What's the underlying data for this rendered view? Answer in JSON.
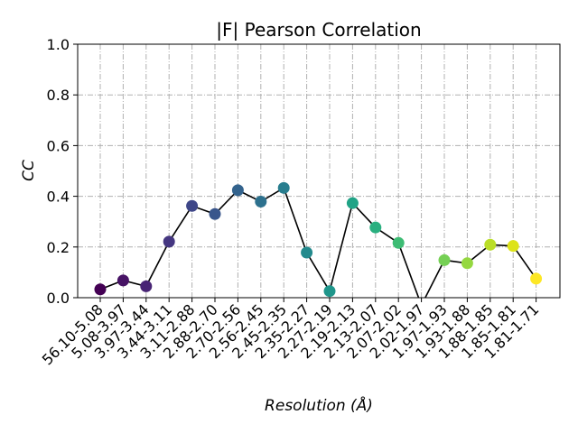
{
  "chart_data": {
    "type": "scatter",
    "title": "|F| Pearson Correlation",
    "xlabel": "Resolution (Å)",
    "ylabel": "CC",
    "ylim": [
      0,
      1.0
    ],
    "yticks": [
      "0.0",
      "0.2",
      "0.4",
      "0.6",
      "0.8",
      "1.0"
    ],
    "grid": true,
    "grid_style": "dash-dot",
    "colormap": "viridis",
    "line_color": "#000000",
    "categories": [
      "56.10-5.08",
      "5.08-3.97",
      "3.97-3.44",
      "3.44-3.11",
      "3.11-2.88",
      "2.88-2.70",
      "2.70-2.56",
      "2.56-2.45",
      "2.45-2.35",
      "2.35-2.27",
      "2.27-2.19",
      "2.19-2.13",
      "2.13-2.07",
      "2.07-2.02",
      "2.02-1.97",
      "1.97-1.93",
      "1.93-1.88",
      "1.88-1.85",
      "1.85-1.81",
      "1.81-1.71"
    ],
    "series": [
      {
        "values": [
          0.033,
          0.068,
          0.045,
          0.221,
          0.362,
          0.33,
          0.424,
          0.379,
          0.433,
          0.178,
          0.026,
          0.373,
          0.277,
          0.216,
          -0.03,
          0.148,
          0.136,
          0.209,
          0.204,
          0.075
        ]
      }
    ],
    "point_colors": [
      "#440154",
      "#471365",
      "#482475",
      "#453781",
      "#3f4788",
      "#39568c",
      "#33638d",
      "#2d718e",
      "#287d8e",
      "#238a8d",
      "#1f968b",
      "#20a386",
      "#29af7f",
      "#3dbc74",
      "#56c667",
      "#75d054",
      "#95d840",
      "#bade28",
      "#dde318",
      "#fde725"
    ]
  }
}
